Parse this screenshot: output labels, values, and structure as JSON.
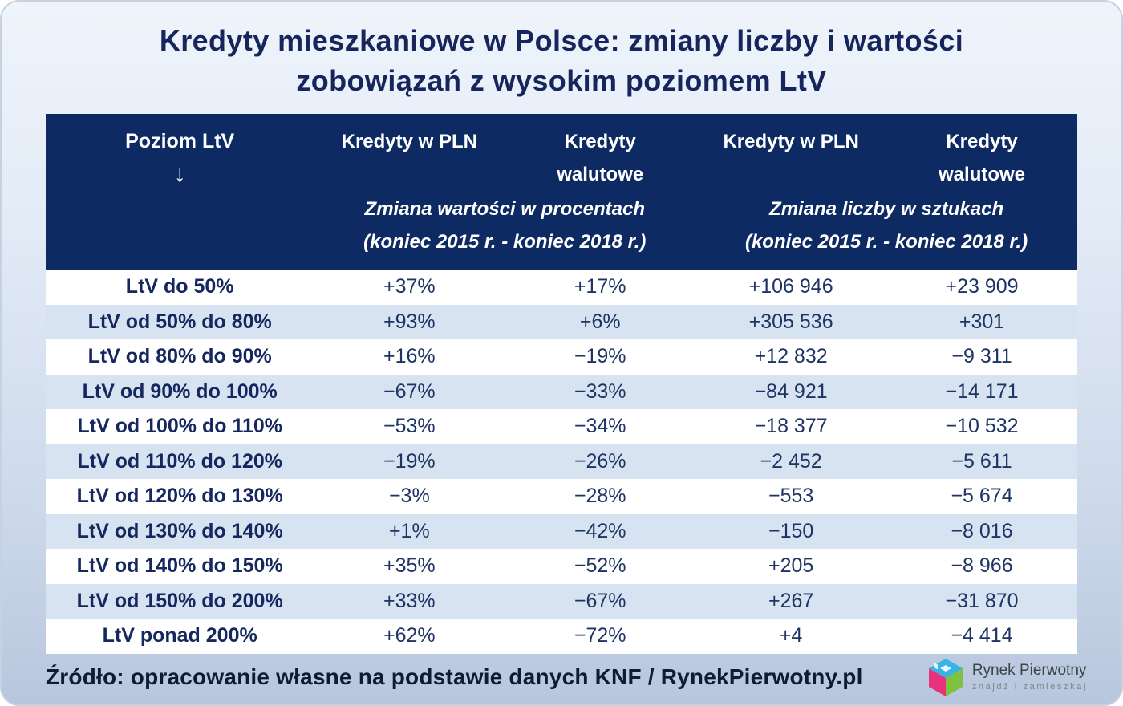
{
  "title": {
    "line1": "Kredyty mieszkaniowe w Polsce: zmiany liczby i wartości",
    "line2": "zobowiązań z wysokim poziomem LtV"
  },
  "table": {
    "header": {
      "ltv_column_title": "Poziom LtV",
      "ltv_sort_arrow": "↓",
      "col_value_pln": "Kredyty w PLN",
      "col_value_fx": "Kredyty walutowe",
      "col_count_pln": "Kredyty w PLN",
      "col_count_fx": "Kredyty walutowe",
      "group_value_title": "Zmiana wartości w procentach",
      "group_value_period": "(koniec 2015 r. - koniec 2018 r.)",
      "group_count_title": "Zmiana liczby w sztukach",
      "group_count_period": "(koniec 2015 r. - koniec 2018 r.)"
    },
    "rows": [
      {
        "label": "LtV do 50%",
        "cells": [
          {
            "text": "+37%",
            "tone": "navy"
          },
          {
            "text": "+17%",
            "tone": "green"
          },
          {
            "text": "+106 946",
            "tone": "navy"
          },
          {
            "text": "+23 909",
            "tone": "green"
          }
        ]
      },
      {
        "label": "LtV od 50% do 80%",
        "cells": [
          {
            "text": "+93%",
            "tone": "green"
          },
          {
            "text": "+6%",
            "tone": "navy"
          },
          {
            "text": "+305 536",
            "tone": "green"
          },
          {
            "text": "+301",
            "tone": "navy"
          }
        ]
      },
      {
        "label": "LtV od 80% do 90%",
        "cells": [
          {
            "text": "+16%",
            "tone": "navy"
          },
          {
            "text": "−19%",
            "tone": "navy"
          },
          {
            "text": "+12 832",
            "tone": "navy"
          },
          {
            "text": "−9 311",
            "tone": "navy"
          }
        ]
      },
      {
        "label": "LtV od 90% do 100%",
        "cells": [
          {
            "text": "−67%",
            "tone": "red"
          },
          {
            "text": "−33%",
            "tone": "navy"
          },
          {
            "text": "−84 921",
            "tone": "red"
          },
          {
            "text": "−14 171",
            "tone": "navy"
          }
        ]
      },
      {
        "label": "LtV od 100% do 110%",
        "cells": [
          {
            "text": "−53%",
            "tone": "navy"
          },
          {
            "text": "−34%",
            "tone": "navy"
          },
          {
            "text": "−18 377",
            "tone": "navy"
          },
          {
            "text": "−10 532",
            "tone": "navy"
          }
        ]
      },
      {
        "label": "LtV od 110% do 120%",
        "cells": [
          {
            "text": "−19%",
            "tone": "navy"
          },
          {
            "text": "−26%",
            "tone": "navy"
          },
          {
            "text": "−2 452",
            "tone": "navy"
          },
          {
            "text": "−5 611",
            "tone": "navy"
          }
        ]
      },
      {
        "label": "LtV od 120% do 130%",
        "cells": [
          {
            "text": "−3%",
            "tone": "navy"
          },
          {
            "text": "−28%",
            "tone": "navy"
          },
          {
            "text": "−553",
            "tone": "navy"
          },
          {
            "text": "−5 674",
            "tone": "navy"
          }
        ]
      },
      {
        "label": "LtV od 130% do 140%",
        "cells": [
          {
            "text": "+1%",
            "tone": "navy"
          },
          {
            "text": "−42%",
            "tone": "navy"
          },
          {
            "text": "−150",
            "tone": "navy"
          },
          {
            "text": "−8 016",
            "tone": "navy"
          }
        ]
      },
      {
        "label": "LtV od 140% do 150%",
        "cells": [
          {
            "text": "+35%",
            "tone": "navy"
          },
          {
            "text": "−52%",
            "tone": "navy"
          },
          {
            "text": "+205",
            "tone": "navy"
          },
          {
            "text": "−8 966",
            "tone": "navy"
          }
        ]
      },
      {
        "label": "LtV od 150% do 200%",
        "cells": [
          {
            "text": "+33%",
            "tone": "navy"
          },
          {
            "text": "−67%",
            "tone": "navy"
          },
          {
            "text": "+267",
            "tone": "navy"
          },
          {
            "text": "−31 870",
            "tone": "red"
          }
        ]
      },
      {
        "label": "LtV ponad 200%",
        "cells": [
          {
            "text": "+62%",
            "tone": "navy"
          },
          {
            "text": "−72%",
            "tone": "red"
          },
          {
            "text": "+4",
            "tone": "navy"
          },
          {
            "text": "−4 414",
            "tone": "navy"
          }
        ]
      }
    ]
  },
  "footer": {
    "source": "Źródło: opracowanie własne na podstawie danych KNF / RynekPierwotny.pl",
    "logo": {
      "name": "Rynek Pierwotny",
      "tagline": "znajdź i zamieszkaj"
    }
  },
  "colors": {
    "header_bg": "#0e2a63",
    "navy_text": "#15275f",
    "green": "#0aa64d",
    "red": "#de3226",
    "row_alt": "#d8e3f2",
    "logo_pink": "#e8327c",
    "logo_blue": "#35b4e5",
    "logo_green": "#7fc241"
  },
  "chart_data": {
    "type": "table",
    "title": "Kredyty mieszkaniowe w Polsce: zmiany liczby i wartości zobowiązań z wysokim poziomem LtV",
    "column_groups": [
      "Zmiana wartości w procentach (koniec 2015 r. - koniec 2018 r.)",
      "Zmiana liczby w sztukach (koniec 2015 r. - koniec 2018 r.)"
    ],
    "columns": [
      "Poziom LtV",
      "Kredyty w PLN — zmiana wartości w procentach",
      "Kredyty walutowe — zmiana wartości w procentach",
      "Kredyty w PLN — zmiana liczby w sztukach",
      "Kredyty walutowe — zmiana liczby w sztukach"
    ],
    "rows": [
      [
        "LtV do 50%",
        "+37%",
        "+17%",
        "+106 946",
        "+23 909"
      ],
      [
        "LtV od 50% do 80%",
        "+93%",
        "+6%",
        "+305 536",
        "+301"
      ],
      [
        "LtV od 80% do 90%",
        "+16%",
        "−19%",
        "+12 832",
        "−9 311"
      ],
      [
        "LtV od 90% do 100%",
        "−67%",
        "−33%",
        "−84 921",
        "−14 171"
      ],
      [
        "LtV od 100% do 110%",
        "−53%",
        "−34%",
        "−18 377",
        "−10 532"
      ],
      [
        "LtV od 110% do 120%",
        "−19%",
        "−26%",
        "−2 452",
        "−5 611"
      ],
      [
        "LtV od 120% do 130%",
        "−3%",
        "−28%",
        "−553",
        "−5 674"
      ],
      [
        "LtV od 130% do 140%",
        "+1%",
        "−42%",
        "−150",
        "−8 016"
      ],
      [
        "LtV od 140% do 150%",
        "+35%",
        "−52%",
        "+205",
        "−8 966"
      ],
      [
        "LtV od 150% do 200%",
        "+33%",
        "−67%",
        "+267",
        "−31 870"
      ],
      [
        "LtV ponad 200%",
        "+62%",
        "−72%",
        "+4",
        "−4 414"
      ]
    ],
    "source": "Źródło: opracowanie własne na podstawie danych KNF / RynekPierwotny.pl"
  }
}
